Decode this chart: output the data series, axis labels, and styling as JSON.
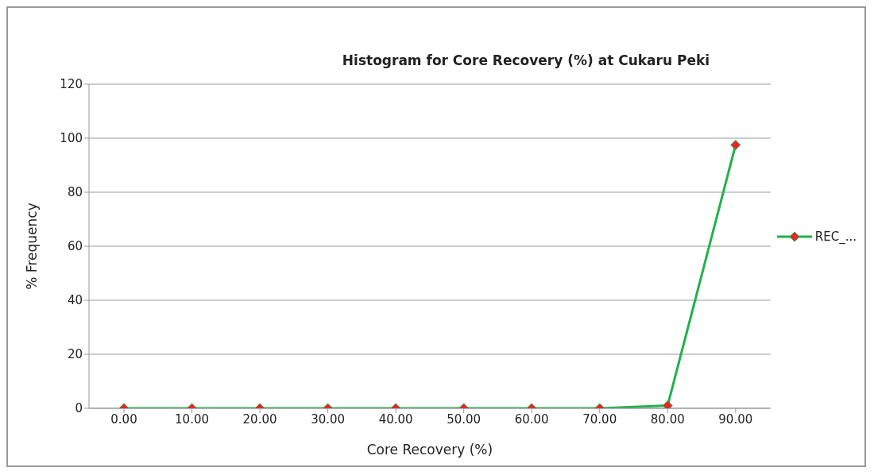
{
  "chart_data": {
    "type": "line",
    "title": "Histogram for Core Recovery (%) at Cukaru Peki",
    "xlabel": "Core  Recovery (%)",
    "ylabel": "% Frequency",
    "categories": [
      "0.00",
      "10.00",
      "20.00",
      "30.00",
      "40.00",
      "50.00",
      "60.00",
      "70.00",
      "80.00",
      "90.00"
    ],
    "series": [
      {
        "name": "REC_...",
        "color": "#22b14c",
        "colors": [
          "#e8262a",
          "#e8262a",
          "#e8262a",
          "#e8262a",
          "#e8262a",
          "#e8262a",
          "#e8262a",
          "#e8262a",
          "#e8262a",
          "#e8262a"
        ],
        "values": [
          0,
          0,
          0,
          0,
          0,
          0,
          0,
          0,
          1,
          97.5
        ]
      }
    ],
    "ylim": [
      0,
      120
    ],
    "yticks": [
      0,
      20,
      40,
      60,
      80,
      100,
      120
    ],
    "grid": "y",
    "legend": "right",
    "marker": "diamond",
    "line_style": "solid"
  }
}
